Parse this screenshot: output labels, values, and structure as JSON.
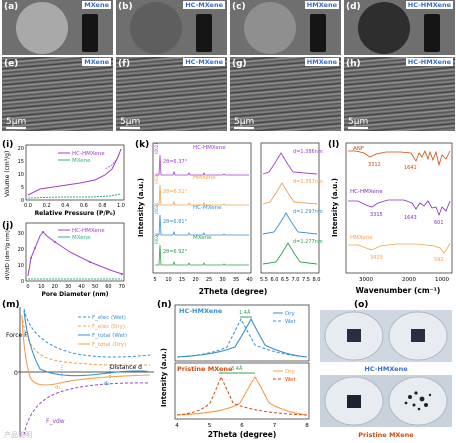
{
  "colors": {
    "purple": "#a040d0",
    "teal": "#30b080",
    "orange": "#f0a050",
    "blue": "#3a8fd0",
    "green": "#30a050",
    "red": "#d04a10",
    "violet": "#8030c0"
  },
  "top_row": [
    {
      "letter": "(a)",
      "tag": "MXene"
    },
    {
      "letter": "(b)",
      "tag": "HC-MXene"
    },
    {
      "letter": "(c)",
      "tag": "HMXene"
    },
    {
      "letter": "(d)",
      "tag": "HC-HMXene"
    }
  ],
  "sem_row": [
    {
      "letter": "(e)",
      "tag": "MXene",
      "scale": "5μm"
    },
    {
      "letter": "(f)",
      "tag": "HC-MXene",
      "scale": "5μm"
    },
    {
      "letter": "(g)",
      "tag": "HMXene",
      "scale": "5μm"
    },
    {
      "letter": "(h)",
      "tag": "HC-HMXene",
      "scale": "5μm"
    }
  ],
  "panel_i": {
    "letter": "(i)",
    "ylabel": "Volume (cm³/g)",
    "xlabel": "Relative Pressure (P/P₀)",
    "legend": [
      "HC-HMXene",
      "MXene"
    ],
    "yticks": [
      "0",
      "5",
      "10",
      "15",
      "20"
    ],
    "xticks": [
      "0.0",
      "0.2",
      "0.4",
      "0.6",
      "0.8",
      "1.0"
    ]
  },
  "panel_j": {
    "letter": "(j)",
    "ylabel": "dV/dD (dm³/g nm)",
    "xlabel": "Pore Diameter (nm)",
    "legend": [
      "HC-HMXene",
      "MXene"
    ],
    "yticks": [
      "0",
      "10",
      "20",
      "30"
    ],
    "xticks": [
      "0",
      "10",
      "20",
      "30",
      "40",
      "50",
      "60",
      "70"
    ]
  },
  "panel_k": {
    "letter": "(k)",
    "ylabel": "Intensity (a.u.)",
    "xlabel": "2Theta (degree)",
    "xticks_left": [
      "5",
      "10",
      "15",
      "20",
      "25",
      "30",
      "35",
      "40"
    ],
    "xticks_right": [
      "5.5",
      "6.0",
      "6.5",
      "7.0",
      "7.5",
      "8.0"
    ],
    "series": [
      {
        "name": "HC-HMXene",
        "angle": "2θ=6.37°",
        "d": "d=1.386nm"
      },
      {
        "name": "HMXene",
        "angle": "2θ=6.51°",
        "d": "d=1.357nm"
      },
      {
        "name": "HC-MXene",
        "angle": "2θ=6.81°",
        "d": "d=1.297nm"
      },
      {
        "name": "MXene",
        "angle": "2θ=6.92°",
        "d": "d=1.277nm"
      }
    ],
    "peak": "(002)"
  },
  "panel_l": {
    "letter": "(l)",
    "ylabel": "Intensity (a.u.)",
    "xlabel": "Wavenumber (cm⁻¹)",
    "xticks": [
      "3000",
      "2000",
      "1000"
    ],
    "series": [
      {
        "name": "ANF",
        "marks": [
          "3312",
          "1641"
        ]
      },
      {
        "name": "HC-HMXene",
        "marks": [
          "3315",
          "1643",
          "601"
        ]
      },
      {
        "name": "HMXene",
        "marks": [
          "3429",
          "592"
        ]
      }
    ]
  },
  "panel_m": {
    "letter": "(m)",
    "ylabel": "Force F",
    "xlabel": "Distance d",
    "legend": [
      "F_elec (Wet)",
      "F_elec (Dry)",
      "F_total (Wet)",
      "F_total (Dry)"
    ],
    "markers": [
      "d₁",
      "d₂"
    ],
    "vdw": "F_vdw",
    "zero": "0"
  },
  "panel_n": {
    "letter": "(n)",
    "ylabel": "Intensity (a.u.)",
    "xlabel": "2Theta (degree)",
    "xticks": [
      "4",
      "5",
      "6",
      "7",
      "8"
    ],
    "top": {
      "name": "HC-HMXene",
      "delta": "1.4Å",
      "legend": [
        "Dry",
        "Wet"
      ]
    },
    "bottom": {
      "name": "Pristine MXene",
      "delta": "3.4Å",
      "legend": [
        "Dry",
        "Wet"
      ]
    }
  },
  "panel_o": {
    "letter": "(o)",
    "labels": [
      "HC-HMXene",
      "Pristine MXene"
    ]
  },
  "watermark": "产品说明"
}
